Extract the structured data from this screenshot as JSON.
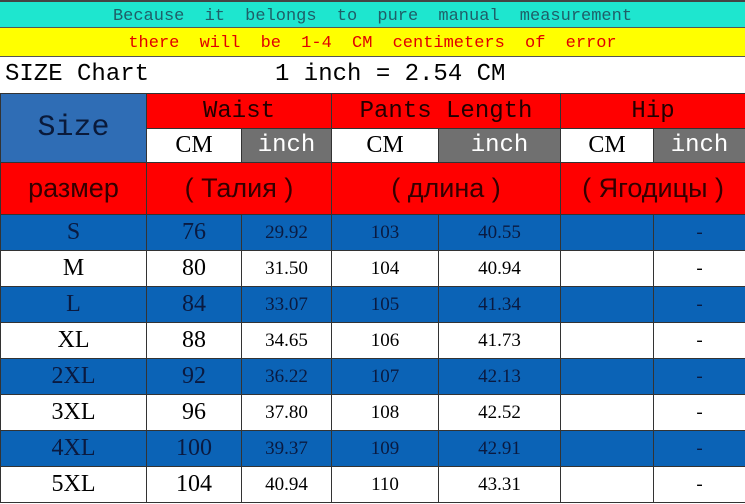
{
  "notice": {
    "line1": "Because it belongs to pure manual measurement",
    "line2": "there will be 1-4 CM centimeters of error"
  },
  "title": {
    "label": "SIZE Chart",
    "conversion": "1 inch = 2.54 CM"
  },
  "header": {
    "size": "Size",
    "waist": "Waist",
    "pants_length": "Pants Length",
    "hip": "Hip",
    "cm": "CM",
    "inch": "inch",
    "ru_size": "размер",
    "ru_waist": "( Талия )",
    "ru_length": "( длина )",
    "ru_hip": "( Ягодицы )"
  },
  "colors": {
    "cyan": "#1ee6cf",
    "yellow": "#ffff00",
    "red": "#ff0000",
    "blue": "#0b63b6",
    "grey": "#707070"
  },
  "rows": [
    {
      "size": "S",
      "waist_cm": "76",
      "waist_in": "29.92",
      "len_cm": "103",
      "len_in": "40.55",
      "hip_cm": "",
      "hip_in": "-"
    },
    {
      "size": "M",
      "waist_cm": "80",
      "waist_in": "31.50",
      "len_cm": "104",
      "len_in": "40.94",
      "hip_cm": "",
      "hip_in": "-"
    },
    {
      "size": "L",
      "waist_cm": "84",
      "waist_in": "33.07",
      "len_cm": "105",
      "len_in": "41.34",
      "hip_cm": "",
      "hip_in": "-"
    },
    {
      "size": "XL",
      "waist_cm": "88",
      "waist_in": "34.65",
      "len_cm": "106",
      "len_in": "41.73",
      "hip_cm": "",
      "hip_in": "-"
    },
    {
      "size": "2XL",
      "waist_cm": "92",
      "waist_in": "36.22",
      "len_cm": "107",
      "len_in": "42.13",
      "hip_cm": "",
      "hip_in": "-"
    },
    {
      "size": "3XL",
      "waist_cm": "96",
      "waist_in": "37.80",
      "len_cm": "108",
      "len_in": "42.52",
      "hip_cm": "",
      "hip_in": "-"
    },
    {
      "size": "4XL",
      "waist_cm": "100",
      "waist_in": "39.37",
      "len_cm": "109",
      "len_in": "42.91",
      "hip_cm": "",
      "hip_in": "-"
    },
    {
      "size": "5XL",
      "waist_cm": "104",
      "waist_in": "40.94",
      "len_cm": "110",
      "len_in": "43.31",
      "hip_cm": "",
      "hip_in": "-"
    }
  ]
}
